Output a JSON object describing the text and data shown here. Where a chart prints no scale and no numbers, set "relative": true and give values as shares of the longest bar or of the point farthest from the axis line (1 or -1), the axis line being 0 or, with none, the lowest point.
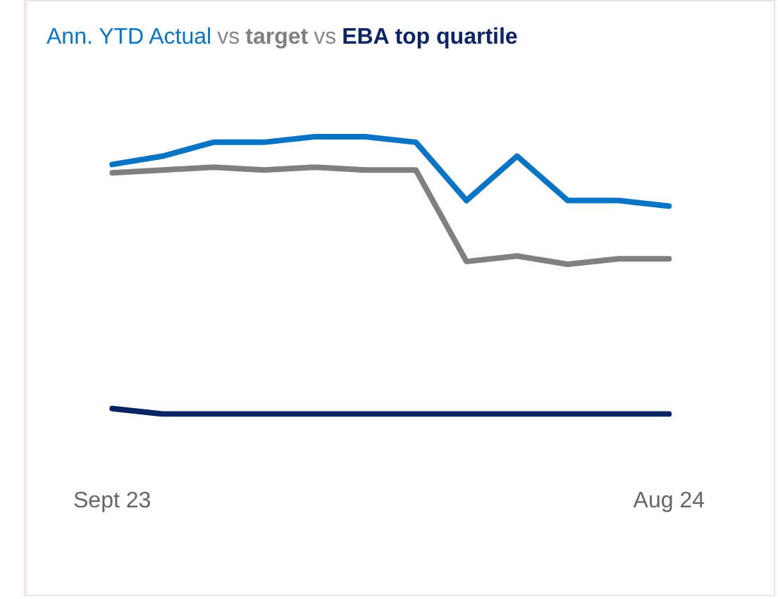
{
  "chart_data": {
    "type": "line",
    "annotations": [
      "vs",
      "vs"
    ],
    "relative": true,
    "legend": false,
    "grid": false,
    "marker": "none",
    "line_style": "solid",
    "categories": [
      "Sept 23",
      null,
      null,
      null,
      null,
      null,
      null,
      null,
      null,
      null,
      null,
      "Aug 24"
    ],
    "series": [
      {
        "name": "Ann. YTD Actual",
        "color": "#0a74c4",
        "values": [
          0.9,
          0.93,
          0.98,
          0.98,
          1.0,
          1.0,
          0.98,
          0.77,
          0.93,
          0.77,
          0.77,
          0.75
        ]
      },
      {
        "name": "target",
        "color": "#808080",
        "values": [
          0.87,
          0.88,
          0.89,
          0.88,
          0.89,
          0.88,
          0.88,
          0.55,
          0.57,
          0.54,
          0.56,
          0.56
        ]
      },
      {
        "name": "EBA top quartile",
        "color": "#0b2463",
        "values": [
          0.02,
          0,
          0,
          0,
          0,
          0,
          0,
          0,
          0,
          0,
          0,
          0
        ]
      }
    ]
  }
}
